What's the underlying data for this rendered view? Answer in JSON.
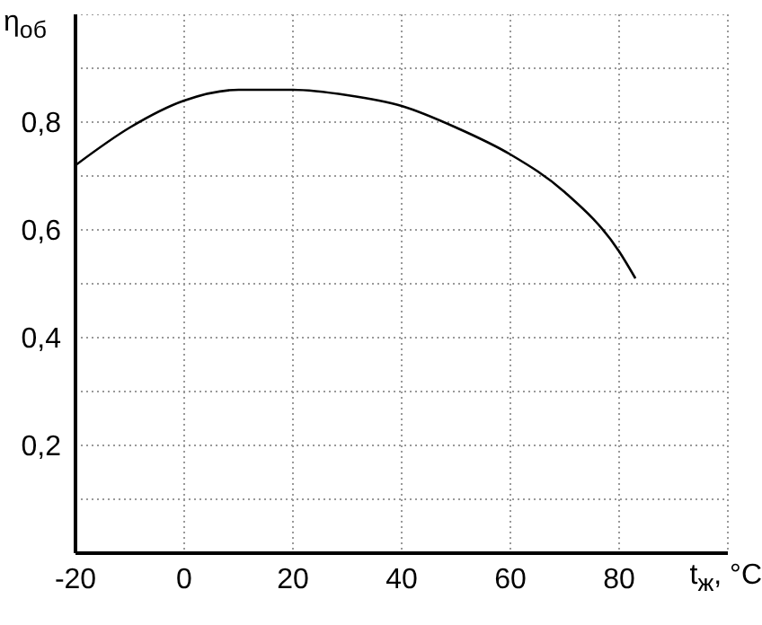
{
  "chart_data": {
    "type": "line",
    "xlabel": "t$_{ж}$, °C",
    "ylabel": "η$_{об}$",
    "x": [
      -20,
      -10,
      0,
      10,
      20,
      30,
      40,
      50,
      60,
      70,
      80,
      83
    ],
    "series": [
      {
        "color": "#000000",
        "values": [
          0.72,
          0.79,
          0.84,
          0.86,
          0.86,
          0.85,
          0.83,
          0.79,
          0.74,
          0.67,
          0.56,
          0.51
        ]
      }
    ],
    "xlim": [
      -20,
      100
    ],
    "xticks": [
      -20,
      0,
      20,
      40,
      60,
      80,
      {
        "value": 100,
        "label": null
      }
    ],
    "ylim": [
      0,
      1
    ],
    "yticks": [
      {
        "value": 0,
        "label": null
      },
      {
        "value": 0.1,
        "label": null
      },
      {
        "value": 0.2,
        "label": "0,2"
      },
      {
        "value": 0.3,
        "label": null
      },
      {
        "value": 0.4,
        "label": "0,4"
      },
      {
        "value": 0.5,
        "label": null
      },
      {
        "value": 0.6,
        "label": "0,6"
      },
      {
        "value": 0.7,
        "label": null
      },
      {
        "value": 0.8,
        "label": "0,8"
      },
      {
        "value": 0.9,
        "label": null
      },
      {
        "value": 1,
        "label": null
      }
    ],
    "grid": true,
    "marker": "none",
    "line_style": "solid"
  }
}
